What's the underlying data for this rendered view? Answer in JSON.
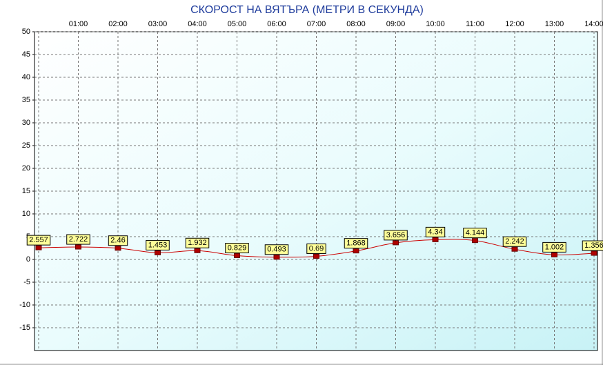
{
  "chart_data": {
    "type": "line",
    "title": "СКОРОСТ НА ВЯТЪРА (МЕТРИ В СЕКУНДА)",
    "categories": [
      null,
      "01:00",
      "02:00",
      "03:00",
      "04:00",
      "05:00",
      "06:00",
      "07:00",
      "08:00",
      "09:00",
      "10:00",
      "11:00",
      "12:00",
      "13:00",
      "14:00"
    ],
    "series": [
      {
        "color": "#cc0000",
        "values": [
          2.557,
          2.722,
          2.46,
          1.453,
          1.932,
          0.829,
          0.493,
          0.69,
          1.868,
          3.656,
          4.34,
          4.144,
          2.242,
          1.002,
          1.356
        ]
      }
    ],
    "ylim": [
      -20,
      50
    ],
    "yticks": [
      -15,
      -10,
      -5,
      0,
      5,
      10,
      15,
      20,
      25,
      30,
      35,
      40,
      45,
      50
    ],
    "grid": true
  }
}
